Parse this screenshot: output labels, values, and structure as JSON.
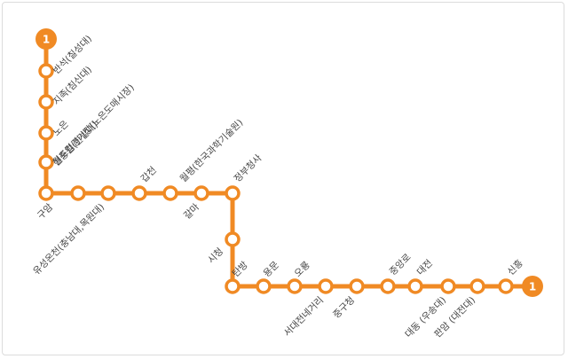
{
  "line": {
    "number": "1",
    "color": "#F08A24"
  },
  "stations": [
    {
      "name": "반석(칠성대)",
      "terminal": true
    },
    {
      "name": "반석(칠성대)"
    },
    {
      "name": "지족(침신대)"
    },
    {
      "name": "노은"
    },
    {
      "name": "월드컵경기장(노은도매시장)"
    },
    {
      "name": "현충원(한밭대)"
    },
    {
      "name": "구암"
    },
    {
      "name": "유성온천(충남대,목원대)"
    },
    {
      "name": ""
    },
    {
      "name": "갑천"
    },
    {
      "name": "월평(한국과학기술원)"
    },
    {
      "name": "갈마"
    },
    {
      "name": "정부청사"
    },
    {
      "name": "시청"
    },
    {
      "name": "탄방"
    },
    {
      "name": "용문"
    },
    {
      "name": "오룡"
    },
    {
      "name": "서대전네거리"
    },
    {
      "name": "중구청"
    },
    {
      "name": "중앙로"
    },
    {
      "name": "대전"
    },
    {
      "name": "대동 (우송대)"
    },
    {
      "name": "판암 (대전대)"
    },
    {
      "name": "신흥"
    },
    {
      "name": "",
      "terminal": true
    }
  ]
}
